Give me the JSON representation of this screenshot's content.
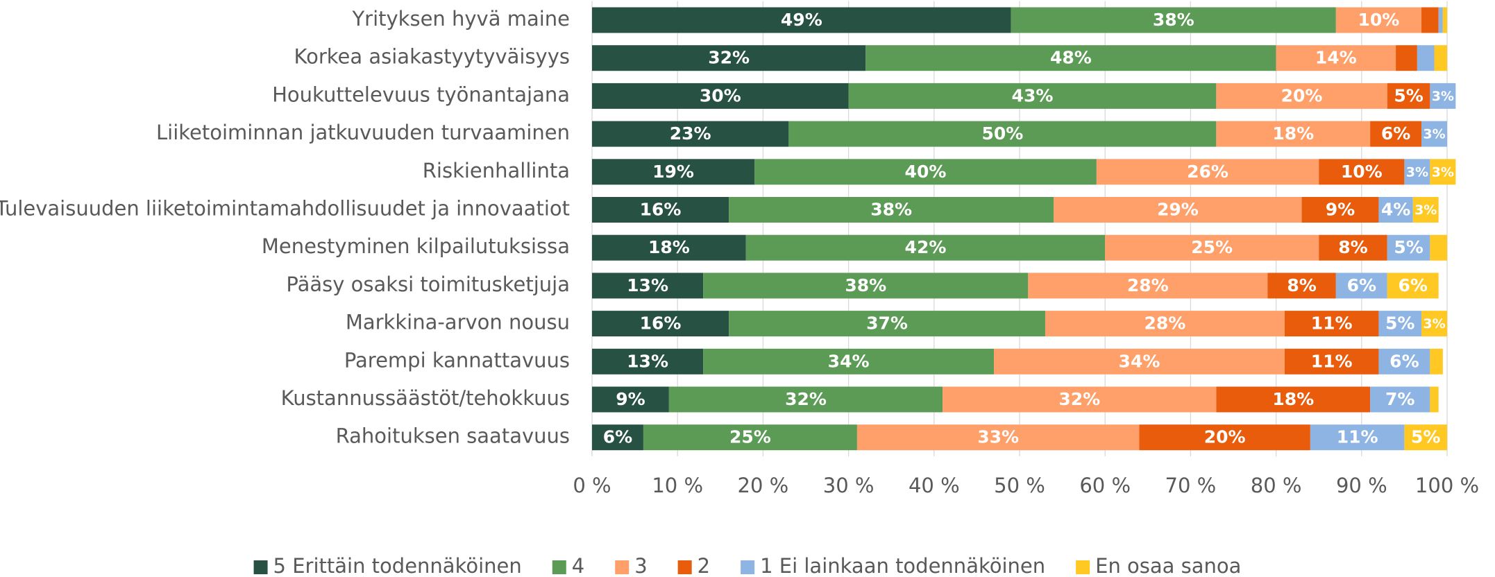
{
  "chart_data": {
    "type": "stacked_bar_horizontal",
    "categories": [
      "Yrityksen hyvä maine",
      "Korkea asiakastyytyväisyys",
      "Houkuttelevuus työnantajana",
      "Liiketoiminnan jatkuvuuden turvaaminen",
      "Riskienhallinta",
      "Tulevaisuuden liiketoimintamahdollisuudet ja innovaatiot",
      "Menestyminen kilpailutuksissa",
      "Pääsy osaksi toimitusketjuja",
      "Markkina-arvon nousu",
      "Parempi kannattavuus",
      "Kustannussäästöt/tehokkuus",
      "Rahoituksen saatavuus"
    ],
    "series": [
      {
        "name": "5 Erittäin todennäköinen",
        "color": "#265143",
        "values": [
          49,
          32,
          30,
          23,
          19,
          16,
          18,
          13,
          16,
          13,
          9,
          6
        ],
        "value_labels": [
          "49%",
          "32%",
          "30%",
          "23%",
          "19%",
          "16%",
          "18%",
          "13%",
          "16%",
          "13%",
          "9%",
          "6%"
        ]
      },
      {
        "name": "4",
        "color": "#5b9b55",
        "values": [
          38,
          48,
          43,
          50,
          40,
          38,
          42,
          38,
          37,
          34,
          32,
          25
        ],
        "value_labels": [
          "38%",
          "48%",
          "43%",
          "50%",
          "40%",
          "38%",
          "42%",
          "38%",
          "37%",
          "34%",
          "32%",
          "25%"
        ]
      },
      {
        "name": "3",
        "color": "#ffa06a",
        "values": [
          10,
          14,
          20,
          18,
          26,
          29,
          25,
          28,
          28,
          34,
          32,
          33
        ],
        "value_labels": [
          "10%",
          "14%",
          "20%",
          "18%",
          "26%",
          "29%",
          "25%",
          "28%",
          "28%",
          "34%",
          "32%",
          "33%"
        ]
      },
      {
        "name": "2",
        "color": "#e85c0c",
        "values": [
          2,
          2.5,
          5,
          6,
          10,
          9,
          8,
          8,
          11,
          11,
          18,
          20
        ],
        "value_labels": [
          null,
          null,
          "5%",
          "6%",
          "10%",
          "9%",
          "8%",
          "8%",
          "11%",
          "11%",
          "18%",
          "20%"
        ]
      },
      {
        "name": "1 Ei lainkaan todennäköinen",
        "color": "#8eb4e3",
        "values": [
          0.5,
          2,
          3,
          3,
          3,
          4,
          5,
          6,
          5,
          6,
          7,
          11
        ],
        "value_labels": [
          null,
          null,
          "3%",
          "3%",
          "3%",
          "4%",
          "5%",
          "6%",
          "5%",
          "6%",
          "7%",
          "11%"
        ]
      },
      {
        "name": "En osaa sanoa",
        "color": "#ffc822",
        "values": [
          0.5,
          1.5,
          0,
          0,
          3,
          3,
          2,
          6,
          3,
          1.5,
          1,
          5
        ],
        "value_labels": [
          null,
          null,
          null,
          null,
          "3%",
          "3%",
          null,
          "6%",
          "3%",
          null,
          null,
          "5%"
        ]
      }
    ],
    "xlim": [
      0,
      100
    ],
    "xticks": [
      {
        "value": 0,
        "label": "0 %"
      },
      {
        "value": 10,
        "label": "10 %"
      },
      {
        "value": 20,
        "label": "20 %"
      },
      {
        "value": 30,
        "label": "30 %"
      },
      {
        "value": 40,
        "label": "40 %"
      },
      {
        "value": 50,
        "label": "50 %"
      },
      {
        "value": 60,
        "label": "60 %"
      },
      {
        "value": 70,
        "label": "70 %"
      },
      {
        "value": 80,
        "label": "80 %"
      },
      {
        "value": 90,
        "label": "90 %"
      },
      {
        "value": 100,
        "label": "100 %"
      }
    ],
    "grid": true,
    "legend": "bottom"
  }
}
